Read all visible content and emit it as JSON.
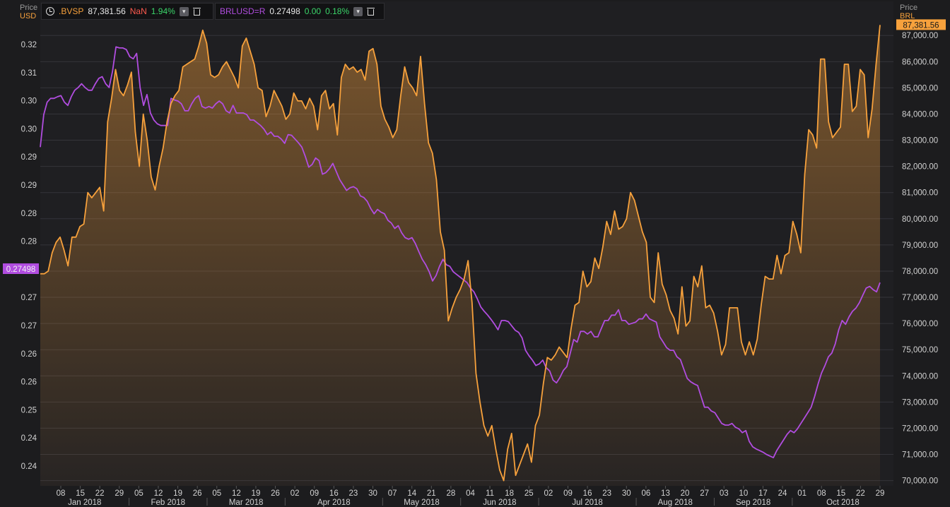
{
  "legend": [
    {
      "symbol": ".BVSP",
      "value": "87,381.56",
      "change": "NaN",
      "pct": "1.94%"
    },
    {
      "symbol": "BRLUSD=R",
      "value": "0.27498",
      "change": "0.00",
      "pct": "0.18%"
    }
  ],
  "left_axis": {
    "title": "Price",
    "unit": "USD",
    "last_label": "0.27498"
  },
  "right_axis": {
    "title": "Price",
    "unit": "BRL",
    "last_label": "87,381.56"
  },
  "colors": {
    "bvsp": "#f7a13c",
    "brlusd": "#b14de0",
    "background": "#1c1c1e",
    "grid": "#34343a"
  },
  "chart_data": {
    "type": "line",
    "left_ticks": [
      "0.32",
      "0.31",
      "0.30",
      "0.30",
      "0.29",
      "0.29",
      "0.28",
      "0.28",
      "0.27",
      "0.27",
      "0.27",
      "0.26",
      "0.26",
      "0.25",
      "0.24",
      "0.24"
    ],
    "left_ylim": [
      0.2375,
      0.3235
    ],
    "right_ticks": [
      "87,000.00",
      "86,000.00",
      "85,000.00",
      "84,000.00",
      "83,000.00",
      "82,000.00",
      "81,000.00",
      "80,000.00",
      "79,000.00",
      "78,000.00",
      "77,000.00",
      "76,000.00",
      "75,000.00",
      "74,000.00",
      "73,000.00",
      "72,000.00",
      "71,000.00",
      "70,000.00"
    ],
    "right_ylim": [
      69800,
      87600
    ],
    "x_day_ticks": [
      "08",
      "15",
      "22",
      "29",
      "05",
      "12",
      "19",
      "26",
      "05",
      "12",
      "19",
      "26",
      "02",
      "09",
      "16",
      "23",
      "30",
      "07",
      "14",
      "21",
      "28",
      "04",
      "11",
      "18",
      "25",
      "02",
      "09",
      "16",
      "23",
      "30",
      "06",
      "13",
      "20",
      "27",
      "03",
      "10",
      "17",
      "24",
      "01",
      "08",
      "15",
      "22",
      "29"
    ],
    "x_month_labels": [
      "Jan 2018",
      "Feb 2018",
      "Mar 2018",
      "Apr 2018",
      "May 2018",
      "Jun 2018",
      "Jul 2018",
      "Aug 2018",
      "Sep 2018",
      "Oct 2018"
    ],
    "series": [
      {
        "name": ".BVSP",
        "axis": "right",
        "values": [
          77900,
          77900,
          78000,
          78700,
          79100,
          79300,
          78800,
          78200,
          79300,
          79300,
          79700,
          79800,
          81000,
          80800,
          81000,
          81200,
          80300,
          83700,
          84600,
          85700,
          84900,
          84700,
          85100,
          85600,
          83300,
          82000,
          84000,
          83000,
          81600,
          81100,
          82000,
          82700,
          83700,
          84400,
          84700,
          84900,
          85800,
          85900,
          86000,
          86100,
          86600,
          87200,
          86700,
          85500,
          85400,
          85500,
          85800,
          86000,
          85700,
          85400,
          85000,
          86600,
          86900,
          86400,
          85900,
          85000,
          84900,
          83900,
          84300,
          84900,
          84600,
          84300,
          83800,
          84000,
          84800,
          84500,
          84500,
          84200,
          84600,
          84300,
          83400,
          84700,
          84900,
          84200,
          84400,
          83200,
          85400,
          85900,
          85700,
          85800,
          85600,
          85700,
          85300,
          86400,
          86500,
          85900,
          84300,
          83800,
          83500,
          83100,
          83400,
          84700,
          85800,
          85200,
          85000,
          84700,
          86200,
          84400,
          82900,
          82500,
          81500,
          79500,
          78800,
          76100,
          76600,
          77000,
          77300,
          77700,
          78400,
          76800,
          74100,
          73000,
          72100,
          71700,
          72100,
          71200,
          70400,
          70000,
          71200,
          71800,
          70200,
          70600,
          71000,
          71400,
          70700,
          72100,
          72500,
          73700,
          74700,
          74600,
          74800,
          75100,
          74900,
          74700,
          75800,
          76700,
          76800,
          78000,
          77400,
          77600,
          78500,
          78100,
          78900,
          79900,
          79400,
          80300,
          79600,
          79700,
          80000,
          81000,
          80700,
          80100,
          79500,
          79100,
          77000,
          76800,
          78700,
          77500,
          77100,
          76500,
          76200,
          75600,
          77400,
          75900,
          76100,
          77800,
          77400,
          78200,
          76600,
          76700,
          76400,
          75700,
          74800,
          75200,
          76600,
          76600,
          76600,
          75300,
          74800,
          75300,
          74800,
          75400,
          76700,
          77800,
          77700,
          77700,
          78600,
          77900,
          78600,
          78700,
          79900,
          79400,
          78700,
          81700,
          83400,
          83200,
          82700,
          86100,
          86100,
          83700,
          83100,
          83300,
          83500,
          85900,
          85900,
          84100,
          84300,
          85700,
          85500,
          83100,
          84200,
          85900,
          87400
        ]
      },
      {
        "name": "BRLUSD=R",
        "axis": "left",
        "values": [
          0.3,
          0.306,
          0.3083,
          0.309,
          0.309,
          0.3093,
          0.3095,
          0.3083,
          0.3077,
          0.3093,
          0.3105,
          0.311,
          0.3117,
          0.311,
          0.3105,
          0.3105,
          0.3117,
          0.3127,
          0.313,
          0.3117,
          0.311,
          0.314,
          0.3185,
          0.3183,
          0.3183,
          0.318,
          0.3167,
          0.3163,
          0.3173,
          0.311,
          0.3077,
          0.3097,
          0.3063,
          0.305,
          0.3043,
          0.304,
          0.304,
          0.304,
          0.309,
          0.3087,
          0.3085,
          0.308,
          0.3067,
          0.3067,
          0.308,
          0.309,
          0.3095,
          0.3075,
          0.3072,
          0.3075,
          0.3072,
          0.308,
          0.3085,
          0.308,
          0.3067,
          0.3063,
          0.3077,
          0.3063,
          0.3063,
          0.3063,
          0.306,
          0.305,
          0.305,
          0.3045,
          0.304,
          0.3033,
          0.3023,
          0.3028,
          0.302,
          0.302,
          0.3015,
          0.3007,
          0.3023,
          0.3022,
          0.3015,
          0.3008,
          0.3,
          0.2983,
          0.2963,
          0.2968,
          0.298,
          0.2975,
          0.295,
          0.2953,
          0.296,
          0.297,
          0.2955,
          0.294,
          0.293,
          0.292,
          0.2925,
          0.2927,
          0.2923,
          0.291,
          0.2907,
          0.29,
          0.2887,
          0.2877,
          0.2885,
          0.288,
          0.2877,
          0.2865,
          0.286,
          0.285,
          0.2855,
          0.2842,
          0.2833,
          0.283,
          0.2833,
          0.2822,
          0.2807,
          0.2793,
          0.2783,
          0.277,
          0.2753,
          0.2763,
          0.278,
          0.2793,
          0.2783,
          0.278,
          0.277,
          0.2765,
          0.276,
          0.2755,
          0.275,
          0.274,
          0.2733,
          0.272,
          0.2705,
          0.2697,
          0.269,
          0.2682,
          0.2673,
          0.2663,
          0.268,
          0.268,
          0.2678,
          0.267,
          0.2662,
          0.2658,
          0.2648,
          0.2625,
          0.2615,
          0.2607,
          0.2597,
          0.26,
          0.2607,
          0.2593,
          0.2587,
          0.257,
          0.2565,
          0.2575,
          0.2588,
          0.2595,
          0.262,
          0.2645,
          0.264,
          0.266,
          0.266,
          0.2655,
          0.266,
          0.265,
          0.265,
          0.2665,
          0.268,
          0.268,
          0.269,
          0.269,
          0.27,
          0.268,
          0.268,
          0.2673,
          0.2675,
          0.2677,
          0.2683,
          0.2683,
          0.2692,
          0.2683,
          0.268,
          0.2677,
          0.265,
          0.264,
          0.263,
          0.2625,
          0.2625,
          0.2613,
          0.2608,
          0.259,
          0.2573,
          0.2567,
          0.2563,
          0.256,
          0.254,
          0.252,
          0.252,
          0.2513,
          0.251,
          0.25,
          0.249,
          0.2487,
          0.2487,
          0.249,
          0.2483,
          0.248,
          0.2473,
          0.2477,
          0.2457,
          0.2447,
          0.2443,
          0.244,
          0.2437,
          0.2433,
          0.243,
          0.2427,
          0.244,
          0.245,
          0.246,
          0.247,
          0.2477,
          0.2473,
          0.248,
          0.249,
          0.25,
          0.251,
          0.252,
          0.254,
          0.2563,
          0.2583,
          0.2597,
          0.2613,
          0.262,
          0.2637,
          0.2663,
          0.268,
          0.2673,
          0.2687,
          0.2697,
          0.2703,
          0.2713,
          0.2727,
          0.274,
          0.2743,
          0.2737,
          0.2733,
          0.275
        ]
      }
    ]
  }
}
